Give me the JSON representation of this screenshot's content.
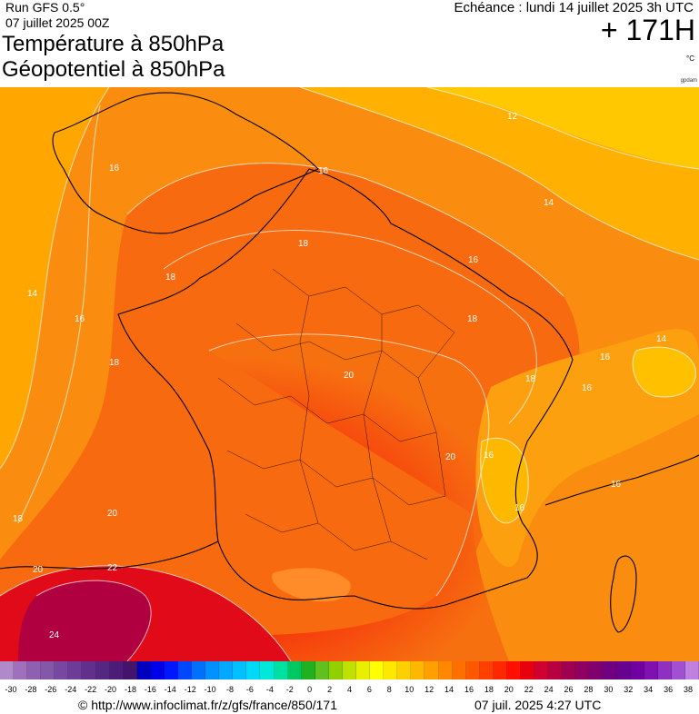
{
  "header": {
    "run": "Run GFS 0.5°",
    "run_date": "07 juillet 2025 00Z",
    "title_line1": "Température à 850hPa",
    "title_line2": "Géopotentiel à 850hPa",
    "echeance": "Echéance : lundi 14 juillet 2025 3h UTC",
    "lead_time": "+ 171H",
    "unit": "°C",
    "credit": "gpdam"
  },
  "contour_labels": [
    {
      "text": "12"
    },
    {
      "text": "14"
    },
    {
      "text": "16"
    },
    {
      "text": "16"
    },
    {
      "text": "18"
    },
    {
      "text": "18"
    },
    {
      "text": "14"
    },
    {
      "text": "16"
    },
    {
      "text": "18"
    },
    {
      "text": "16"
    },
    {
      "text": "18"
    },
    {
      "text": "20"
    },
    {
      "text": "14"
    },
    {
      "text": "16"
    },
    {
      "text": "16"
    },
    {
      "text": "18"
    },
    {
      "text": "20"
    },
    {
      "text": "16"
    },
    {
      "text": "16"
    },
    {
      "text": "16"
    },
    {
      "text": "18"
    },
    {
      "text": "20"
    },
    {
      "text": "20"
    },
    {
      "text": "22"
    },
    {
      "text": "24"
    }
  ],
  "scale": {
    "ticks": [
      "-30",
      "-28",
      "-26",
      "-24",
      "-22",
      "-20",
      "-18",
      "-16",
      "-14",
      "-12",
      "-10",
      "-8",
      "-6",
      "-4",
      "-2",
      "0",
      "2",
      "4",
      "6",
      "8",
      "10",
      "12",
      "14",
      "16",
      "18",
      "20",
      "22",
      "24",
      "26",
      "28",
      "30",
      "32",
      "34",
      "36",
      "38"
    ],
    "colors": [
      "#b08ac8",
      "#a070bc",
      "#9060b0",
      "#8458a8",
      "#7848a0",
      "#6c3c98",
      "#60308c",
      "#542880",
      "#4c1c78",
      "#44146c",
      "#0000c0",
      "#0000e8",
      "#0018ff",
      "#0048ff",
      "#0070ff",
      "#0090ff",
      "#00a8ff",
      "#00c0ff",
      "#00d8f8",
      "#00e8d8",
      "#00e0a0",
      "#00c860",
      "#20b020",
      "#60c020",
      "#90d000",
      "#c0e000",
      "#e8f000",
      "#ffff00",
      "#ffe800",
      "#ffd000",
      "#ffb800",
      "#ffa000",
      "#ff8800",
      "#ff7000",
      "#ff5800",
      "#ff4000",
      "#ff2800",
      "#ff1000",
      "#e80010",
      "#d00030",
      "#b80040",
      "#a00050",
      "#900060",
      "#800070",
      "#700080",
      "#680090",
      "#7000a0",
      "#8010b0",
      "#9030c0",
      "#a050d0",
      "#c080e0"
    ]
  },
  "footer": {
    "url": "© http://www.infoclimat.fr/z/gfs/france/850/171",
    "timestamp": "07 juil. 2025  4:27 UTC"
  }
}
